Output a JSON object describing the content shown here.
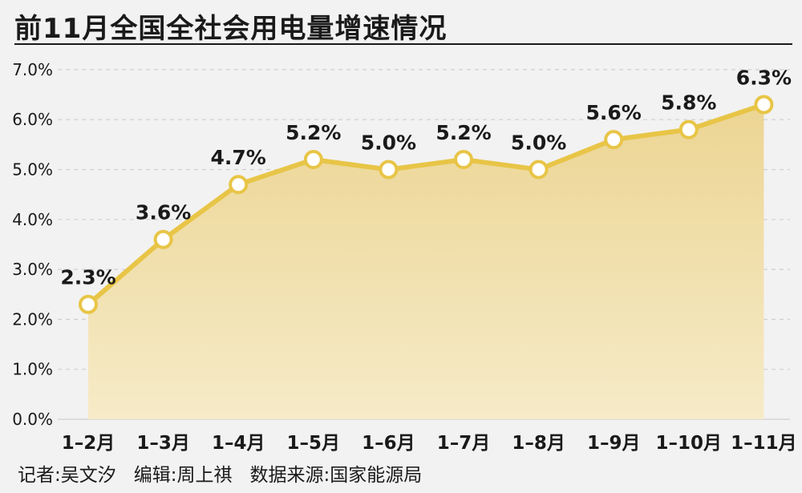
{
  "header": {
    "title": "前11月全国全社会用电量增速情况"
  },
  "credits": {
    "reporter": "记者:吴文汐",
    "editor": "编辑:周上祺",
    "source": "数据来源:国家能源局"
  },
  "colors": {
    "line": "#e8c547",
    "fill_top": "#ecd593",
    "fill_bottom": "#f6ebc8",
    "grid": "#cfcfcf",
    "text": "#1a1a1a"
  },
  "chart_data": {
    "type": "line",
    "categories": [
      "1–2月",
      "1–3月",
      "1–4月",
      "1–5月",
      "1–6月",
      "1–7月",
      "1–8月",
      "1–9月",
      "1–10月",
      "1–11月"
    ],
    "values": [
      2.3,
      3.6,
      4.7,
      5.2,
      5.0,
      5.2,
      5.0,
      5.6,
      5.8,
      6.3
    ],
    "data_labels": [
      "2.3%",
      "3.6%",
      "4.7%",
      "5.2%",
      "5.0%",
      "5.2%",
      "5.0%",
      "5.6%",
      "5.8%",
      "6.3%"
    ],
    "y_ticks": [
      "0.0%",
      "1.0%",
      "2.0%",
      "3.0%",
      "4.0%",
      "5.0%",
      "6.0%",
      "7.0%"
    ],
    "ylim": [
      0,
      7
    ],
    "grid": true,
    "area_fill": true
  }
}
